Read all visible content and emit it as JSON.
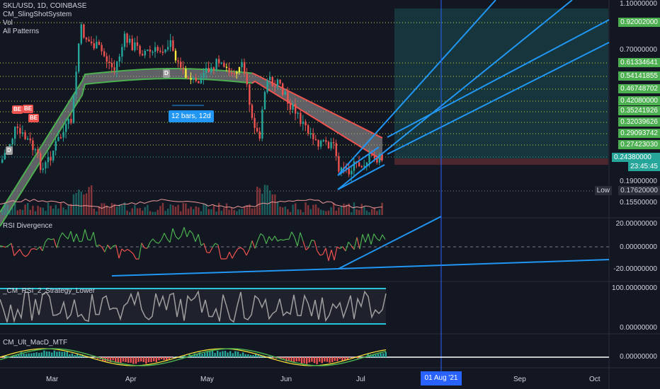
{
  "header": {
    "symbol_line": "SKL/USD, 1D, COINBASE",
    "indicators": [
      "CM_SlingShotSystem",
      "Vol",
      "All Patterns"
    ]
  },
  "price_axis": {
    "ticks": [
      "1.10000000",
      "0.70000000",
      "0.19000000",
      "0.15500000"
    ],
    "labels": [
      {
        "value": "0.92002000",
        "color": "#4caf50"
      },
      {
        "value": "0.61334641",
        "color": "#4caf50"
      },
      {
        "value": "0.54141855",
        "color": "#4caf50"
      },
      {
        "value": "0.46748702",
        "color": "#4caf50"
      },
      {
        "value": "0.42080000",
        "color": "#4caf50"
      },
      {
        "value": "0.35241926",
        "color": "#4caf50"
      },
      {
        "value": "0.32039626",
        "color": "#4caf50"
      },
      {
        "value": "0.29093742",
        "color": "#4caf50"
      },
      {
        "value": "0.27423030",
        "color": "#4caf50"
      },
      {
        "value": "0.24380000",
        "color": "#26a69a"
      }
    ],
    "countdown": "23:45:45",
    "low_tag": "Low",
    "low_value": "0.17620000"
  },
  "annotations": {
    "bars_label": "12 bars, 12d",
    "pattern_badges": [
      "D",
      "BE",
      "BE",
      "BE",
      "D"
    ]
  },
  "panes": {
    "rsi": {
      "title": "RSI Divergence",
      "ticks": [
        "20.00000000",
        "0.00000000",
        "-20.00000000"
      ]
    },
    "rsi2": {
      "title": "_CM_RSI_2_Strategy_Lower",
      "ticks": [
        "100.00000000",
        "0.00000000"
      ]
    },
    "macd": {
      "title": "CM_Ult_MacD_MTF",
      "ticks": [
        "0.00000000"
      ]
    }
  },
  "time_axis": {
    "months": [
      "Mar",
      "Apr",
      "May",
      "Jun",
      "Jul",
      "Sep",
      "Oct"
    ],
    "cursor_date": "01 Aug '21"
  },
  "colors": {
    "background": "#131722",
    "up": "#26a69a",
    "down": "#ef5350",
    "fib": "#cddc39",
    "trendline": "#2196f3",
    "ema_fast": "#4caf50",
    "ema_slow": "#ef5350"
  }
}
